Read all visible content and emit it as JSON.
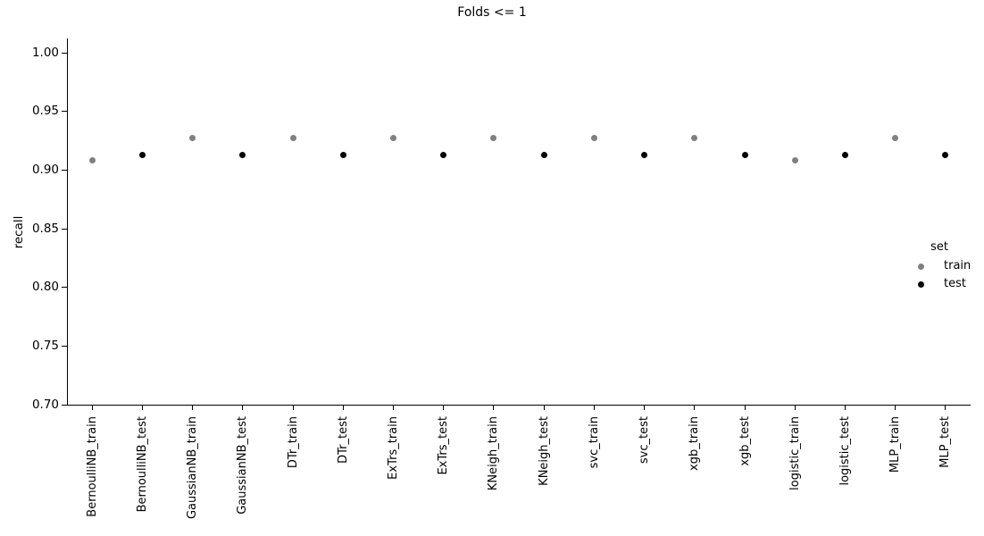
{
  "chart_data": {
    "type": "scatter",
    "title": "Folds <= 1",
    "xlabel": "",
    "ylabel": "recall",
    "ylim": [
      0.7,
      1.0
    ],
    "yticks": [
      1.0,
      0.95,
      0.9,
      0.85,
      0.8,
      0.75,
      0.7
    ],
    "grid": false,
    "legend_position": "right",
    "categories": [
      "BernoulliNB_train",
      "BernoulliNB_test",
      "GaussianNB_train",
      "GaussianNB_test",
      "DTr_train",
      "DTr_test",
      "ExTrs_train",
      "ExTrs_test",
      "KNeigh_train",
      "KNeigh_test",
      "svc_train",
      "svc_test",
      "xgb_train",
      "xgb_test",
      "logistic_train",
      "logistic_test",
      "MLP_train",
      "MLP_test"
    ],
    "points": [
      {
        "category": "BernoulliNB_train",
        "set": "train",
        "value": 0.908
      },
      {
        "category": "BernoulliNB_test",
        "set": "test",
        "value": 0.913
      },
      {
        "category": "GaussianNB_train",
        "set": "train",
        "value": 0.927
      },
      {
        "category": "GaussianNB_test",
        "set": "test",
        "value": 0.913
      },
      {
        "category": "DTr_train",
        "set": "train",
        "value": 0.927
      },
      {
        "category": "DTr_test",
        "set": "test",
        "value": 0.913
      },
      {
        "category": "ExTrs_train",
        "set": "train",
        "value": 0.927
      },
      {
        "category": "ExTrs_test",
        "set": "test",
        "value": 0.913
      },
      {
        "category": "KNeigh_train",
        "set": "train",
        "value": 0.927
      },
      {
        "category": "KNeigh_test",
        "set": "test",
        "value": 0.913
      },
      {
        "category": "svc_train",
        "set": "train",
        "value": 0.927
      },
      {
        "category": "svc_test",
        "set": "test",
        "value": 0.913
      },
      {
        "category": "xgb_train",
        "set": "train",
        "value": 0.927
      },
      {
        "category": "xgb_test",
        "set": "test",
        "value": 0.913
      },
      {
        "category": "logistic_train",
        "set": "train",
        "value": 0.908
      },
      {
        "category": "logistic_test",
        "set": "test",
        "value": 0.913
      },
      {
        "category": "MLP_train",
        "set": "train",
        "value": 0.927
      },
      {
        "category": "MLP_test",
        "set": "test",
        "value": 0.913
      }
    ],
    "set_colors": {
      "train": "#808080",
      "test": "#000000"
    },
    "legend": {
      "title": "set",
      "entries": [
        {
          "label": "train",
          "color": "#808080"
        },
        {
          "label": "test",
          "color": "#000000"
        }
      ]
    },
    "colors": {
      "background": "#ffffff",
      "axis": "#000000",
      "text": "#000000"
    }
  }
}
